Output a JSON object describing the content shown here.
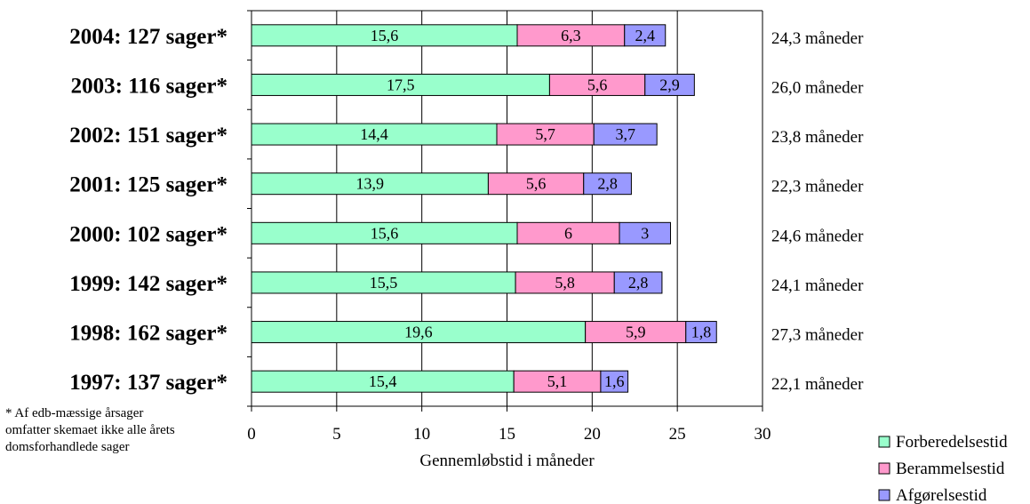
{
  "chart_data": {
    "type": "bar",
    "orientation": "horizontal",
    "stacked": true,
    "categories": [
      "2004: 127 sager*",
      "2003: 116 sager*",
      "2002: 151 sager*",
      "2001: 125 sager*",
      "2000: 102 sager*",
      "1999: 142 sager*",
      "1998: 162 sager*",
      "1997: 137 sager*"
    ],
    "series": [
      {
        "name": "Forberedelsestid",
        "color": "#99FFCC",
        "values": [
          15.6,
          17.5,
          14.4,
          13.9,
          15.6,
          15.5,
          19.6,
          15.4
        ],
        "labels": [
          "15,6",
          "17,5",
          "14,4",
          "13,9",
          "15,6",
          "15,5",
          "19,6",
          "15,4"
        ]
      },
      {
        "name": "Berammelsestid",
        "color": "#FF99CC",
        "values": [
          6.3,
          5.6,
          5.7,
          5.6,
          6,
          5.8,
          5.9,
          5.1
        ],
        "labels": [
          "6,3",
          "5,6",
          "5,7",
          "5,6",
          "6",
          "5,8",
          "5,9",
          "5,1"
        ]
      },
      {
        "name": "Afgørelsestid",
        "color": "#9999FF",
        "values": [
          2.4,
          2.9,
          3.7,
          2.8,
          3,
          2.8,
          1.8,
          1.6
        ],
        "labels": [
          "2,4",
          "2,9",
          "3,7",
          "2,8",
          "3",
          "2,8",
          "1,8",
          "1,6"
        ]
      }
    ],
    "totals": [
      "24,3 måneder",
      "26,0 måneder",
      "23,8 måneder",
      "22,3 måneder",
      "24,6 måneder",
      "24,1 måneder",
      "27,3 måneder",
      "22,1 måneder"
    ],
    "xlabel": "Gennemløbstid i måneder",
    "xlim": [
      0,
      30
    ],
    "xticks": [
      0,
      5,
      10,
      15,
      20,
      25,
      30
    ],
    "grid": "vertical",
    "legend": "bottom-right"
  },
  "footnote": {
    "lines": [
      "* Af edb-mæssige årsager",
      "omfatter skemaet ikke alle årets",
      "domsforhandlede sager"
    ]
  }
}
